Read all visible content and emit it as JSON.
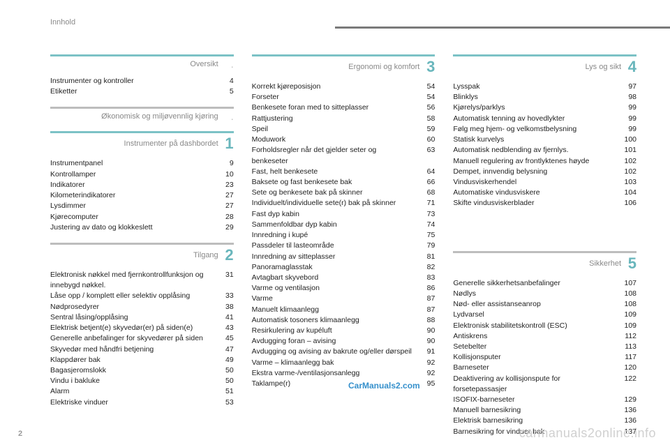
{
  "header_label": "Innhold",
  "page_number": "2",
  "watermark_grey": "carmanuals2online.info",
  "watermark_blue": "CarManuals2.com",
  "colors": {
    "teal": "#7cc2c6",
    "grey": "#bdbdbd",
    "num_teal": "#69b6bc",
    "num_grey": "#a0a0a0"
  },
  "columns": [
    {
      "sections": [
        {
          "title": "Oversikt",
          "rule_color": "#7cc2c6",
          "num": null,
          "num_color": "#a0a0a0",
          "entries": [
            {
              "label": "Instrumenter og kontroller",
              "page": "4"
            },
            {
              "label": "Etiketter",
              "page": "5"
            }
          ]
        },
        {
          "title": "Økonomisk og miljøvennlig kjøring",
          "rule_color": "#bdbdbd",
          "num": null,
          "num_color": "#a0a0a0",
          "entries": []
        },
        {
          "title": "Instrumenter på dashbordet",
          "rule_color": "#7cc2c6",
          "num": "1",
          "num_color": "#69b6bc",
          "entries": [
            {
              "label": "Instrumentpanel",
              "page": "9"
            },
            {
              "label": "Kontrollamper",
              "page": "10"
            },
            {
              "label": "Indikatorer",
              "page": "23"
            },
            {
              "label": "Kilometerindikatorer",
              "page": "27"
            },
            {
              "label": "Lysdimmer",
              "page": "27"
            },
            {
              "label": "Kjørecomputer",
              "page": "28"
            },
            {
              "label": "Justering av dato og klokkeslett",
              "page": "29"
            }
          ]
        },
        {
          "title": "Tilgang",
          "rule_color": "#bdbdbd",
          "num": "2",
          "num_color": "#69b6bc",
          "entries": [
            {
              "label": "Elektronisk nøkkel med fjernkontrollfunksjon og innebygd nøkkel.",
              "page": "31"
            },
            {
              "label": "Låse opp / komplett eller selektiv opplåsing",
              "page": "33"
            },
            {
              "label": "Nødprosedyrer",
              "page": "38"
            },
            {
              "label": "Sentral låsing/opplåsing",
              "page": "41"
            },
            {
              "label": "Elektrisk betjent(e) skyvedør(er) på siden(e)",
              "page": "43"
            },
            {
              "label": "Generelle anbefalinger for skyvedører på siden",
              "page": "45"
            },
            {
              "label": "Skyvedør med håndfri betjening",
              "page": "47"
            },
            {
              "label": "Klappdører bak",
              "page": "49"
            },
            {
              "label": "Bagasjeromslokk",
              "page": "50"
            },
            {
              "label": "Vindu i bakluke",
              "page": "50"
            },
            {
              "label": "Alarm",
              "page": "51"
            },
            {
              "label": "Elektriske vinduer",
              "page": "53"
            }
          ]
        }
      ]
    },
    {
      "sections": [
        {
          "title": "Ergonomi og komfort",
          "rule_color": "#7cc2c6",
          "num": "3",
          "num_color": "#69b6bc",
          "entries": [
            {
              "label": "Korrekt kjøreposisjon",
              "page": "54"
            },
            {
              "label": "Forseter",
              "page": "54"
            },
            {
              "label": "Benkesete foran med to sitteplasser",
              "page": "56"
            },
            {
              "label": "Rattjustering",
              "page": "58"
            },
            {
              "label": "Speil",
              "page": "59"
            },
            {
              "label": "Moduwork",
              "page": "60"
            },
            {
              "label": "Forholdsregler når det gjelder seter og benkeseter",
              "page": "63"
            },
            {
              "label": "Fast, helt benkesete",
              "page": "64"
            },
            {
              "label": "Baksete og fast benkesete bak",
              "page": "66"
            },
            {
              "label": "Sete og benkesete bak på skinner",
              "page": "68"
            },
            {
              "label": "Individuelt/individuelle sete(r) bak på skinner",
              "page": "71"
            },
            {
              "label": "Fast dyp kabin",
              "page": "73"
            },
            {
              "label": "Sammenfoldbar dyp kabin",
              "page": "74"
            },
            {
              "label": "Innredning i kupé",
              "page": "75"
            },
            {
              "label": "Passdeler til lasteområde",
              "page": "79"
            },
            {
              "label": "Innredning av sitteplasser",
              "page": "81"
            },
            {
              "label": "Panoramaglasstak",
              "page": "82"
            },
            {
              "label": "Avtagbart skyvebord",
              "page": "83"
            },
            {
              "label": "Varme og ventilasjon",
              "page": "86"
            },
            {
              "label": "Varme",
              "page": "87"
            },
            {
              "label": "Manuelt klimaanlegg",
              "page": "87"
            },
            {
              "label": "Automatisk tosoners klimaanlegg",
              "page": "88"
            },
            {
              "label": "Resirkulering av kupéluft",
              "page": "90"
            },
            {
              "label": "Avdugging foran – avising",
              "page": "90"
            },
            {
              "label": "Avdugging og avising av bakrute og/eller dørspeil",
              "page": "91"
            },
            {
              "label": "Varme – klimaanlegg bak",
              "page": "92"
            },
            {
              "label": "Ekstra varme-/ventilasjonsanlegg",
              "page": "92"
            },
            {
              "label": "Taklampe(r)",
              "page": "95"
            }
          ]
        }
      ]
    },
    {
      "sections": [
        {
          "title": "Lys og sikt",
          "rule_color": "#7cc2c6",
          "num": "4",
          "num_color": "#69b6bc",
          "entries": [
            {
              "label": "Lysspak",
              "page": "97"
            },
            {
              "label": "Blinklys",
              "page": "98"
            },
            {
              "label": "Kjørelys/parklys",
              "page": "99"
            },
            {
              "label": "Automatisk tenning av hovedlykter",
              "page": "99"
            },
            {
              "label": "Følg meg hjem- og velkomstbelysning",
              "page": "99"
            },
            {
              "label": "Statisk kurvelys",
              "page": "100"
            },
            {
              "label": "Automatisk nedblending av fjernlys.",
              "page": "101"
            },
            {
              "label": "Manuell regulering av frontlyktenes høyde",
              "page": "102"
            },
            {
              "label": "Dempet, innvendig belysning",
              "page": "102"
            },
            {
              "label": "Vindusviskerhendel",
              "page": "103"
            },
            {
              "label": "Automatiske vindusviskere",
              "page": "104"
            },
            {
              "label": "Skifte vindusviskerblader",
              "page": "106"
            }
          ]
        },
        {
          "title": "Sikkerhet",
          "rule_color": "#bdbdbd",
          "num": "5",
          "num_color": "#69b6bc",
          "gap_before": true,
          "entries": [
            {
              "label": "Generelle sikkerhetsanbefalinger",
              "page": "107"
            },
            {
              "label": "Nødlys",
              "page": "108"
            },
            {
              "label": "Nød- eller assistanseanrop",
              "page": "108"
            },
            {
              "label": "Lydvarsel",
              "page": "109"
            },
            {
              "label": "Elektronisk stabilitetskontroll (ESC)",
              "page": "109"
            },
            {
              "label": "Antiskrens",
              "page": "112"
            },
            {
              "label": "Setebelter",
              "page": "113"
            },
            {
              "label": "Kollisjonsputer",
              "page": "117"
            },
            {
              "label": "Barneseter",
              "page": "120"
            },
            {
              "label": "Deaktivering av kollisjonspute for forsetepassasjer",
              "page": "122"
            },
            {
              "label": "ISOFIX-barneseter",
              "page": "129"
            },
            {
              "label": "Manuell barnesikring",
              "page": "136"
            },
            {
              "label": "Elektrisk barnesikring",
              "page": "136"
            },
            {
              "label": "Barnesikring for vinduer bak",
              "page": "137"
            }
          ]
        }
      ]
    }
  ]
}
